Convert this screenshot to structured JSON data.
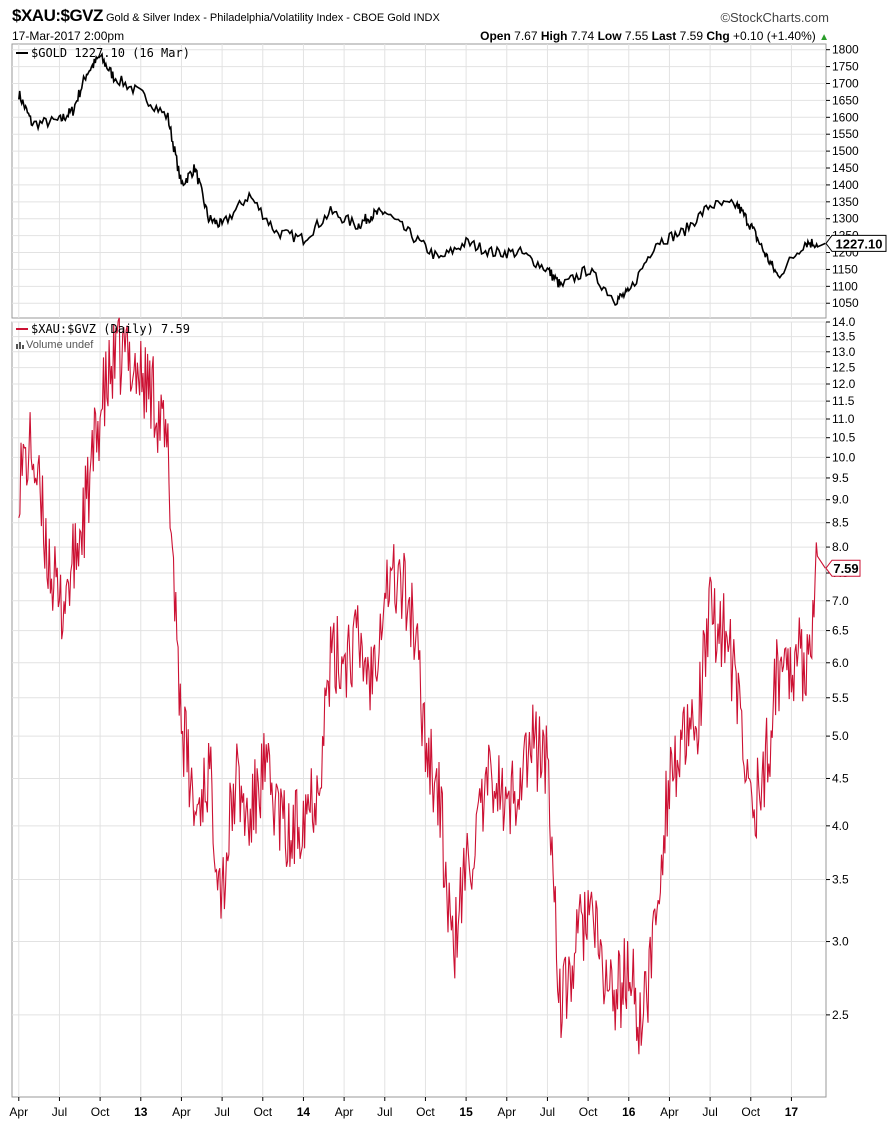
{
  "header": {
    "symbol": "$XAU:$GVZ",
    "description": "Gold & Silver Index - Philadelphia/Volatility Index - CBOE Gold",
    "exchange": "INDX",
    "brand": "©StockCharts.com",
    "datetime": "17-Mar-2017 2:00pm",
    "open_label": "Open",
    "open": "7.67",
    "high_label": "High",
    "high": "7.74",
    "low_label": "Low",
    "low": "7.55",
    "last_label": "Last",
    "last": "7.59",
    "chg_label": "Chg",
    "chg": "+0.10 (+1.40%)",
    "up_arrow": "▲"
  },
  "colors": {
    "gold_line": "#000000",
    "ratio_line": "#cc1133",
    "grid": "#e2e2e2",
    "up": "#2a9d2a"
  },
  "chart_data": [
    {
      "type": "line",
      "legend": "$GOLD 1227.10 (16 Mar)",
      "last_label": "1227.10",
      "y_ticks": [
        "1800",
        "1750",
        "1700",
        "1650",
        "1600",
        "1550",
        "1500",
        "1450",
        "1400",
        "1350",
        "1300",
        "1250",
        "1200",
        "1150",
        "1100",
        "1050"
      ],
      "ylim": [
        1030,
        1805
      ],
      "x": [
        "2012-04",
        "2012-05",
        "2012-07",
        "2012-08",
        "2012-09",
        "2012-10",
        "2012-11",
        "2013-01",
        "2013-03",
        "2013-04",
        "2013-05",
        "2013-06",
        "2013-07",
        "2013-09",
        "2013-11",
        "2014-01",
        "2014-03",
        "2014-05",
        "2014-06",
        "2014-07",
        "2014-09",
        "2014-11",
        "2015-01",
        "2015-03",
        "2015-05",
        "2015-07",
        "2015-08",
        "2015-10",
        "2015-12",
        "2016-01",
        "2016-03",
        "2016-05",
        "2016-07",
        "2016-09",
        "2016-10",
        "2016-11",
        "2016-12",
        "2017-02",
        "2017-03"
      ],
      "values": [
        1670,
        1580,
        1590,
        1620,
        1730,
        1780,
        1720,
        1670,
        1600,
        1400,
        1450,
        1300,
        1280,
        1370,
        1260,
        1240,
        1320,
        1280,
        1310,
        1320,
        1250,
        1180,
        1230,
        1200,
        1200,
        1150,
        1100,
        1150,
        1060,
        1080,
        1230,
        1260,
        1340,
        1340,
        1280,
        1200,
        1130,
        1230,
        1227
      ]
    },
    {
      "type": "line",
      "legend": "$XAU:$GVZ (Daily) 7.59",
      "sublegend": "Volume undef",
      "last_label": "7.59",
      "y_ticks": [
        "14.0",
        "13.5",
        "13.0",
        "12.5",
        "12.0",
        "11.5",
        "11.0",
        "10.5",
        "10.0",
        "9.5",
        "9.0",
        "8.5",
        "8.0",
        "7.5",
        "7.0",
        "6.5",
        "6.0",
        "5.5",
        "5.0",
        "4.5",
        "4.0",
        "3.5",
        "3.0",
        "2.5"
      ],
      "ylim": [
        2.1,
        14.0
      ],
      "x": [
        "2012-04",
        "2012-05",
        "2012-06",
        "2012-07",
        "2012-08",
        "2012-09",
        "2012-10",
        "2012-11",
        "2012-12",
        "2013-01",
        "2013-02",
        "2013-03",
        "2013-04",
        "2013-05",
        "2013-06",
        "2013-07",
        "2013-08",
        "2013-09",
        "2013-10",
        "2013-11",
        "2013-12",
        "2014-01",
        "2014-02",
        "2014-03",
        "2014-04",
        "2014-05",
        "2014-06",
        "2014-07",
        "2014-08",
        "2014-09",
        "2014-10",
        "2014-11",
        "2014-12",
        "2015-01",
        "2015-02",
        "2015-03",
        "2015-04",
        "2015-05",
        "2015-06",
        "2015-07",
        "2015-08",
        "2015-09",
        "2015-10",
        "2015-11",
        "2015-12",
        "2016-01",
        "2016-02",
        "2016-03",
        "2016-04",
        "2016-05",
        "2016-06",
        "2016-07",
        "2016-08",
        "2016-09",
        "2016-10",
        "2016-11",
        "2016-12",
        "2017-01",
        "2017-02",
        "2017-03"
      ],
      "values": [
        9.6,
        10.2,
        8.1,
        6.8,
        7.6,
        8.9,
        11.2,
        12.6,
        13.0,
        12.2,
        11.7,
        10.0,
        5.2,
        4.1,
        4.6,
        3.4,
        4.5,
        4.0,
        4.6,
        4.2,
        3.8,
        4.2,
        4.4,
        6.0,
        6.1,
        6.3,
        5.8,
        7.3,
        7.4,
        6.8,
        5.0,
        4.3,
        2.9,
        3.6,
        4.0,
        4.6,
        4.1,
        4.6,
        4.9,
        4.7,
        2.5,
        2.9,
        3.3,
        2.8,
        2.6,
        2.8,
        2.4,
        3.2,
        4.6,
        4.8,
        5.1,
        6.7,
        6.6,
        5.5,
        4.2,
        4.5,
        5.9,
        6.1,
        6.0,
        7.59
      ]
    }
  ],
  "x_axis": {
    "labels": [
      "Apr",
      "Jul",
      "Oct",
      "13",
      "Apr",
      "Jul",
      "Oct",
      "14",
      "Apr",
      "Jul",
      "Oct",
      "15",
      "Apr",
      "Jul",
      "Oct",
      "16",
      "Apr",
      "Jul",
      "Oct",
      "17"
    ],
    "dates": [
      "2012-04",
      "2012-07",
      "2012-10",
      "2013-01",
      "2013-04",
      "2013-07",
      "2013-10",
      "2014-01",
      "2014-04",
      "2014-07",
      "2014-10",
      "2015-01",
      "2015-04",
      "2015-07",
      "2015-10",
      "2016-01",
      "2016-04",
      "2016-07",
      "2016-10",
      "2017-01"
    ],
    "bold": [
      false,
      false,
      false,
      true,
      false,
      false,
      false,
      true,
      false,
      false,
      false,
      true,
      false,
      false,
      false,
      true,
      false,
      false,
      false,
      true
    ]
  }
}
